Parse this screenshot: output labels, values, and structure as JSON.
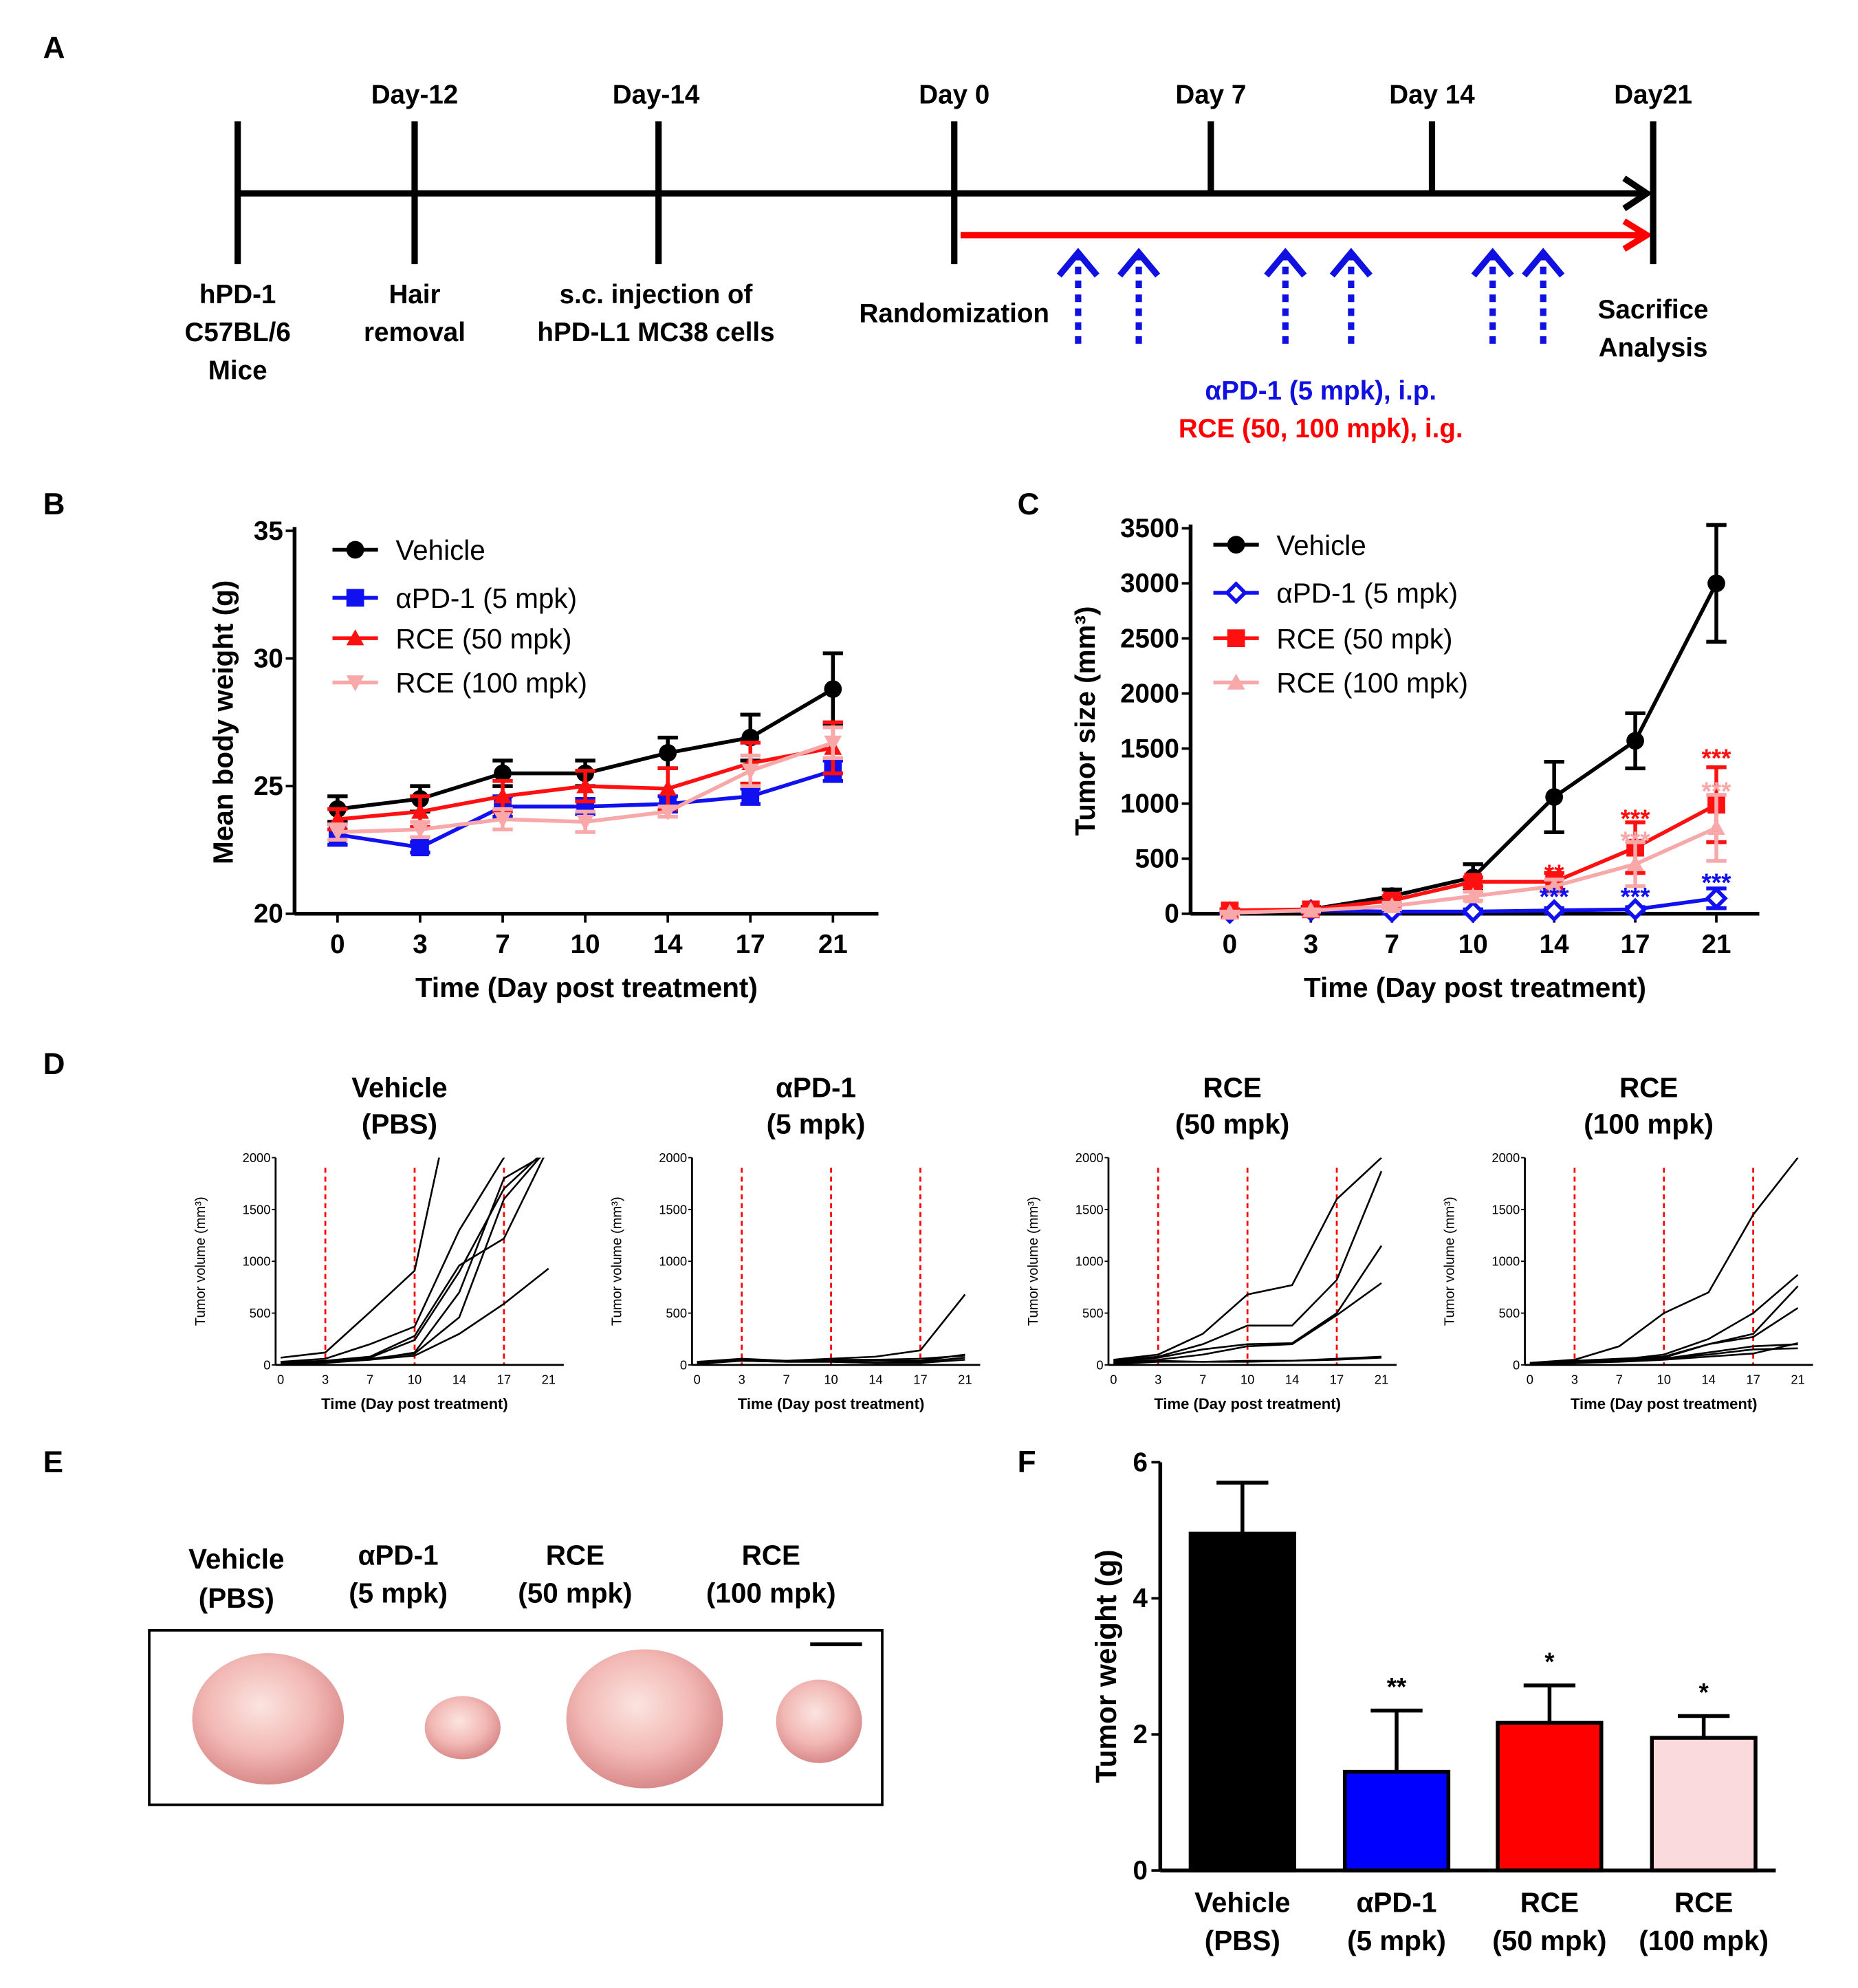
{
  "panel_labels": {
    "A": "A",
    "B": "B",
    "C": "C",
    "D": "D",
    "E": "E",
    "F": "F"
  },
  "timeline": {
    "top_labels": [
      "Day-12",
      "Day-14",
      "Day 0",
      "Day 7",
      "Day 14",
      "Day21"
    ],
    "mice": [
      "hPD-1",
      "C57BL/6",
      "Mice"
    ],
    "hair": [
      "Hair",
      "removal"
    ],
    "injection": [
      "s.c. injection of",
      "hPD-L1 MC38 cells"
    ],
    "randomization": "Randomization",
    "end": [
      "Sacrifice",
      "Analysis"
    ],
    "apd1_dosing": "αPD-1 (5 mpk), i.p.",
    "rce_dosing": "RCE (50, 100 mpk), i.g.",
    "colors": {
      "apd1": "#1010e0",
      "rce": "#ff0000"
    }
  },
  "tumor_labels": [
    [
      "Vehicle",
      "(PBS)"
    ],
    [
      "αPD-1",
      "(5 mpk)"
    ],
    [
      "RCE",
      "(50 mpk)"
    ],
    [
      "RCE",
      "(100 mpk)"
    ]
  ],
  "chart_data": [
    {
      "id": "B",
      "type": "line",
      "xlabel": "Time (Day post treatment)",
      "ylabel": "Mean body weight (g)",
      "categories": [
        "0",
        "3",
        "7",
        "10",
        "14",
        "17",
        "21"
      ],
      "ylim": [
        20,
        35
      ],
      "yticks": [
        "20",
        "25",
        "30",
        "35"
      ],
      "legend_position": "top-left",
      "series": [
        {
          "name": "Vehicle",
          "color": "#000000",
          "marker": "circle",
          "values": [
            24.1,
            24.5,
            25.5,
            25.5,
            26.3,
            26.9,
            28.8
          ],
          "errors": [
            0.5,
            0.5,
            0.5,
            0.5,
            0.6,
            0.9,
            1.4
          ]
        },
        {
          "name": "αPD-1 (5 mpk)",
          "color": "#1010f0",
          "marker": "square",
          "values": [
            23.1,
            22.6,
            24.2,
            24.2,
            24.3,
            24.6,
            25.6
          ],
          "errors": [
            0.4,
            0.2,
            0.4,
            0.3,
            0.3,
            0.3,
            0.4
          ]
        },
        {
          "name": "RCE (50 mpk)",
          "color": "#ff1010",
          "marker": "triangle-up",
          "values": [
            23.7,
            24.0,
            24.6,
            25.0,
            24.9,
            25.9,
            26.5
          ],
          "errors": [
            0.4,
            0.6,
            0.6,
            0.6,
            0.8,
            0.8,
            1.0
          ]
        },
        {
          "name": "RCE (100 mpk)",
          "color": "#f8a8a8",
          "marker": "triangle-down",
          "values": [
            23.2,
            23.3,
            23.7,
            23.6,
            24.0,
            25.6,
            26.7
          ],
          "errors": [
            0.3,
            0.3,
            0.4,
            0.4,
            0.2,
            0.6,
            0.6
          ]
        }
      ]
    },
    {
      "id": "C",
      "type": "line",
      "xlabel": "Time (Day post treatment)",
      "ylabel": "Tumor size (mm³)",
      "categories": [
        "0",
        "3",
        "7",
        "10",
        "14",
        "17",
        "21"
      ],
      "ylim": [
        0,
        3500
      ],
      "yticks": [
        "0",
        "500",
        "1000",
        "1500",
        "2000",
        "2500",
        "3000",
        "3500"
      ],
      "legend_position": "top-left",
      "series": [
        {
          "name": "Vehicle",
          "color": "#000000",
          "marker": "circle",
          "values": [
            20,
            40,
            160,
            330,
            1060,
            1570,
            3000
          ],
          "errors": [
            20,
            20,
            60,
            120,
            320,
            250,
            530
          ]
        },
        {
          "name": "αPD-1 (5 mpk)",
          "color": "#1010f0",
          "marker": "diamond-open",
          "values": [
            10,
            30,
            20,
            20,
            30,
            40,
            140
          ],
          "errors": [
            20,
            20,
            20,
            20,
            20,
            20,
            90
          ]
        },
        {
          "name": "RCE (50 mpk)",
          "color": "#ff1010",
          "marker": "square",
          "values": [
            30,
            40,
            120,
            290,
            290,
            600,
            990
          ],
          "errors": [
            10,
            10,
            40,
            40,
            80,
            230,
            340
          ]
        },
        {
          "name": "RCE (100 mpk)",
          "color": "#f8a8a8",
          "marker": "triangle-up",
          "values": [
            10,
            30,
            70,
            160,
            250,
            450,
            780
          ],
          "errors": [
            10,
            10,
            30,
            40,
            60,
            200,
            300
          ]
        }
      ],
      "annotations": [
        {
          "text": "**",
          "x": "14",
          "y": 400,
          "color": "#ff1010"
        },
        {
          "text": "***",
          "x": "14",
          "y": 190,
          "color": "#1010f0"
        },
        {
          "text": "***",
          "x": "17",
          "y": 900,
          "color": "#ff1010"
        },
        {
          "text": "***",
          "x": "17",
          "y": 700,
          "color": "#f8a8a8"
        },
        {
          "text": "***",
          "x": "17",
          "y": 190,
          "color": "#1010f0"
        },
        {
          "text": "***",
          "x": "21",
          "y": 1450,
          "color": "#ff1010"
        },
        {
          "text": "***",
          "x": "21",
          "y": 1150,
          "color": "#f8a8a8"
        },
        {
          "text": "***",
          "x": "21",
          "y": 320,
          "color": "#1010f0"
        }
      ]
    },
    {
      "id": "D1",
      "type": "line",
      "title": [
        "Vehicle",
        "(PBS)"
      ],
      "xlabel": "Time (Day post treatment)",
      "ylabel": "Tumor volume (mm³)",
      "categories": [
        "0",
        "3",
        "7",
        "10",
        "14",
        "17",
        "21"
      ],
      "ylim": [
        0,
        2000
      ],
      "yticks": [
        "0",
        "500",
        "1000",
        "1500",
        "2000"
      ],
      "treatment_days": [
        "3",
        "10",
        "17"
      ],
      "series": [
        [
          70,
          120,
          510,
          910,
          2900,
          null,
          null
        ],
        [
          30,
          60,
          200,
          370,
          1300,
          2000,
          2600
        ],
        [
          20,
          40,
          80,
          280,
          960,
          1220,
          2100
        ],
        [
          10,
          30,
          70,
          240,
          900,
          1700,
          2100
        ],
        [
          20,
          40,
          60,
          110,
          460,
          1600,
          2100
        ],
        [
          10,
          30,
          50,
          90,
          300,
          590,
          930
        ],
        [
          10,
          20,
          50,
          120,
          700,
          1800,
          2050
        ]
      ]
    },
    {
      "id": "D2",
      "type": "line",
      "title": [
        "αPD-1",
        "(5 mpk)"
      ],
      "xlabel": "Time (Day post treatment)",
      "ylabel": "Tumor volume (mm³)",
      "categories": [
        "0",
        "3",
        "7",
        "10",
        "14",
        "17",
        "21"
      ],
      "ylim": [
        0,
        2000
      ],
      "yticks": [
        "0",
        "500",
        "1000",
        "1500",
        "2000"
      ],
      "treatment_days": [
        "3",
        "10",
        "17"
      ],
      "series": [
        [
          30,
          60,
          40,
          60,
          80,
          140,
          680
        ],
        [
          20,
          50,
          40,
          40,
          40,
          40,
          100
        ],
        [
          20,
          40,
          30,
          30,
          20,
          30,
          70
        ],
        [
          10,
          40,
          30,
          30,
          20,
          20,
          50
        ],
        [
          30,
          50,
          40,
          50,
          50,
          60,
          90
        ]
      ]
    },
    {
      "id": "D3",
      "type": "line",
      "title": [
        "RCE",
        "(50 mpk)"
      ],
      "xlabel": "Time (Day post treatment)",
      "ylabel": "Tumor volume (mm³)",
      "categories": [
        "0",
        "3",
        "7",
        "10",
        "14",
        "17",
        "21"
      ],
      "ylim": [
        0,
        2000
      ],
      "yticks": [
        "0",
        "500",
        "1000",
        "1500",
        "2000"
      ],
      "treatment_days": [
        "3",
        "10",
        "17"
      ],
      "series": [
        [
          50,
          100,
          300,
          680,
          770,
          1600,
          2000
        ],
        [
          40,
          80,
          200,
          380,
          380,
          820,
          1870
        ],
        [
          30,
          70,
          150,
          200,
          210,
          500,
          1150
        ],
        [
          20,
          50,
          100,
          180,
          200,
          480,
          790
        ],
        [
          20,
          40,
          30,
          40,
          40,
          50,
          70
        ],
        [
          10,
          30,
          30,
          30,
          40,
          60,
          80
        ]
      ]
    },
    {
      "id": "D4",
      "type": "line",
      "title": [
        "RCE",
        "(100 mpk)"
      ],
      "xlabel": "Time (Day post treatment)",
      "ylabel": "Tumor volume (mm³)",
      "categories": [
        "0",
        "3",
        "7",
        "10",
        "14",
        "17",
        "21"
      ],
      "ylim": [
        0,
        2000
      ],
      "yticks": [
        "0",
        "500",
        "1000",
        "1500",
        "2000"
      ],
      "treatment_days": [
        "3",
        "10",
        "17"
      ],
      "series": [
        [
          20,
          50,
          180,
          500,
          700,
          1450,
          2000
        ],
        [
          10,
          30,
          50,
          100,
          250,
          500,
          870
        ],
        [
          20,
          40,
          60,
          80,
          200,
          300,
          760
        ],
        [
          10,
          30,
          50,
          70,
          200,
          270,
          550
        ],
        [
          10,
          30,
          40,
          60,
          120,
          180,
          200
        ],
        [
          10,
          20,
          40,
          60,
          100,
          150,
          160
        ],
        [
          10,
          20,
          30,
          50,
          80,
          110,
          210
        ]
      ]
    },
    {
      "id": "F",
      "type": "bar",
      "ylabel": "Tumor weight (g)",
      "xlabel": "",
      "categories": [
        [
          "Vehicle",
          "(PBS)"
        ],
        [
          "αPD-1",
          "(5 mpk)"
        ],
        [
          "RCE",
          "(50 mpk)"
        ],
        [
          "RCE",
          "(100 mpk)"
        ]
      ],
      "values": [
        4.95,
        1.45,
        2.17,
        1.95
      ],
      "errors": [
        0.75,
        0.9,
        0.55,
        0.32
      ],
      "significance": [
        "",
        "**",
        "*",
        "*"
      ],
      "colors": [
        "#000000",
        "#0000ff",
        "#ff0000",
        "#fadadd"
      ],
      "ylim": [
        0,
        6
      ],
      "yticks": [
        "0",
        "2",
        "4",
        "6"
      ]
    }
  ]
}
